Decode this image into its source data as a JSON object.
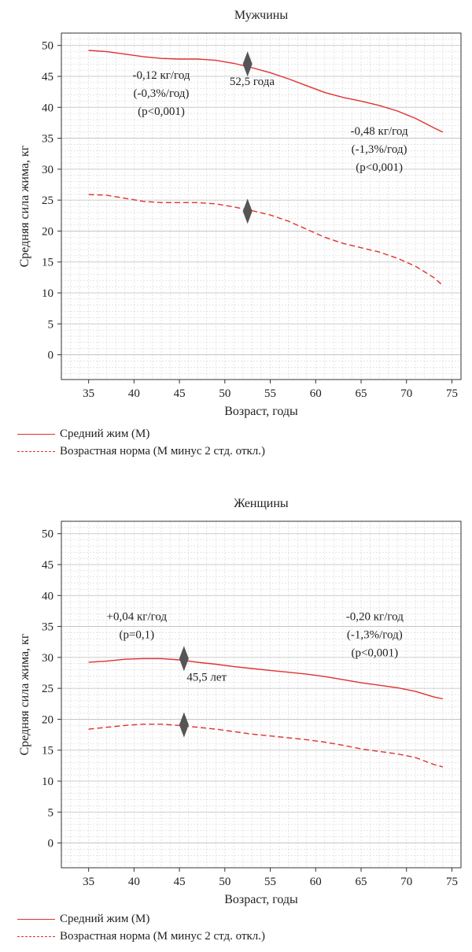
{
  "colors": {
    "series": "#e03030",
    "marker": "#555555",
    "grid": "#cccccc",
    "axis": "#333333"
  },
  "chart_data": [
    {
      "type": "line",
      "title": "Мужчины",
      "xlabel": "Возраст, годы",
      "ylabel": "Средняя сила жима, кг",
      "xlim": [
        32,
        76
      ],
      "ylim": [
        -4,
        52
      ],
      "xticks": [
        35,
        40,
        45,
        50,
        55,
        60,
        65,
        70,
        75
      ],
      "yticks": [
        0,
        5,
        10,
        15,
        20,
        25,
        30,
        35,
        40,
        45,
        50
      ],
      "grid": true,
      "series": [
        {
          "name": "Средний жим (М)",
          "style": "solid",
          "x": [
            35,
            37,
            39,
            41,
            43,
            45,
            47,
            49,
            51,
            53,
            55,
            57,
            59,
            61,
            63,
            65,
            67,
            69,
            71,
            73,
            74
          ],
          "y": [
            49.2,
            49.0,
            48.6,
            48.2,
            47.9,
            47.8,
            47.8,
            47.6,
            47.1,
            46.4,
            45.6,
            44.6,
            43.5,
            42.4,
            41.6,
            41.0,
            40.3,
            39.4,
            38.2,
            36.7,
            36.0
          ]
        },
        {
          "name": "Возрастная норма (М минус 2 стд. откл.)",
          "style": "dashed",
          "x": [
            35,
            37,
            39,
            41,
            43,
            45,
            47,
            49,
            51,
            53,
            55,
            57,
            59,
            61,
            63,
            65,
            67,
            69,
            71,
            73,
            74
          ],
          "y": [
            25.9,
            25.8,
            25.3,
            24.8,
            24.6,
            24.6,
            24.6,
            24.4,
            23.9,
            23.3,
            22.6,
            21.6,
            20.3,
            19.0,
            18.0,
            17.3,
            16.6,
            15.6,
            14.3,
            12.5,
            11.2
          ]
        }
      ],
      "markers": [
        {
          "x": 52.5,
          "y": 47.0
        },
        {
          "x": 52.5,
          "y": 23.2
        }
      ],
      "annotations": [
        {
          "lines": [
            "-0,12 кг/год",
            "(-0,3%/год)",
            "(p<0,001)"
          ],
          "x": 43,
          "y": 44.6
        },
        {
          "lines": [
            "52,5 года"
          ],
          "x": 53,
          "y": 43.6
        },
        {
          "lines": [
            "-0,48 кг/год",
            "(-1,3%/год)",
            "(p<0,001)"
          ],
          "x": 67,
          "y": 35.6
        }
      ]
    },
    {
      "type": "line",
      "title": "Женщины",
      "xlabel": "Возраст, годы",
      "ylabel": "Средняя сила жима, кг",
      "xlim": [
        32,
        76
      ],
      "ylim": [
        -4,
        52
      ],
      "xticks": [
        35,
        40,
        45,
        50,
        55,
        60,
        65,
        70,
        75
      ],
      "yticks": [
        0,
        5,
        10,
        15,
        20,
        25,
        30,
        35,
        40,
        45,
        50
      ],
      "grid": true,
      "series": [
        {
          "name": "Средний жим (М)",
          "style": "solid",
          "x": [
            35,
            37,
            39,
            41,
            43,
            45,
            47,
            49,
            51,
            53,
            55,
            57,
            59,
            61,
            63,
            65,
            67,
            69,
            71,
            73,
            74
          ],
          "y": [
            29.2,
            29.4,
            29.7,
            29.8,
            29.8,
            29.6,
            29.2,
            28.9,
            28.5,
            28.2,
            27.9,
            27.6,
            27.3,
            26.9,
            26.4,
            25.9,
            25.5,
            25.1,
            24.5,
            23.6,
            23.3
          ]
        },
        {
          "name": "Возрастная норма (М минус 2 стд. откл.)",
          "style": "dashed",
          "x": [
            35,
            37,
            39,
            41,
            43,
            45,
            47,
            49,
            51,
            53,
            55,
            57,
            59,
            61,
            63,
            65,
            67,
            69,
            71,
            73,
            74
          ],
          "y": [
            18.4,
            18.7,
            19.0,
            19.2,
            19.2,
            19.0,
            18.7,
            18.4,
            18.0,
            17.6,
            17.3,
            17.0,
            16.7,
            16.3,
            15.8,
            15.2,
            14.8,
            14.4,
            13.8,
            12.7,
            12.3
          ]
        }
      ],
      "markers": [
        {
          "x": 45.5,
          "y": 29.8
        },
        {
          "x": 45.5,
          "y": 19.1
        }
      ],
      "annotations": [
        {
          "lines": [
            "+0,04 кг/год",
            "(p=0,1)"
          ],
          "x": 40.3,
          "y": 36.0
        },
        {
          "lines": [
            "45,5 лет"
          ],
          "x": 48,
          "y": 26.2
        },
        {
          "lines": [
            "-0,20 кг/год",
            "(-1,3%/год)",
            "(p<0,001)"
          ],
          "x": 66.5,
          "y": 36.0
        }
      ]
    }
  ]
}
